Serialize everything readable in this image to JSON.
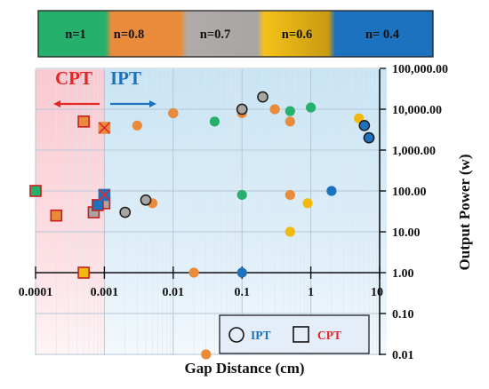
{
  "chart_data": {
    "type": "scatter",
    "title": "",
    "xlabel": "Gap Distance (cm)",
    "ylabel": "Output Power (w)",
    "x_scale": "log",
    "y_scale": "log",
    "xlim": [
      0.0001,
      10
    ],
    "ylim": [
      0.01,
      100000
    ],
    "x_ticks": [
      "0.0001",
      "0.001",
      "0.01",
      "0.1",
      "1",
      "10"
    ],
    "y_ticks": [
      "0.01",
      "0.10",
      "1.00",
      "10.00",
      "100.00",
      "1,000.00",
      "10,000.00",
      "100,000.00"
    ],
    "grid": true,
    "color_legend": [
      {
        "label": "n=1",
        "color": "#27b06c"
      },
      {
        "label": "n=0.8",
        "color": "#e98b3a"
      },
      {
        "label": "n=0.7",
        "color": "#a9a5a3"
      },
      {
        "label": "n=0.6",
        "color": "#f2b90f"
      },
      {
        "label": "n= 0.4",
        "color": "#1d72c0"
      }
    ],
    "shape_legend": [
      {
        "label": "IPT",
        "marker": "circle",
        "color": "#1d72c0"
      },
      {
        "label": "CPT",
        "marker": "square",
        "color": "#e32626"
      }
    ],
    "regions": [
      {
        "label": "CPT",
        "x_range": [
          0.0001,
          0.001
        ],
        "color": "#e32626"
      },
      {
        "label": "IPT",
        "x_range": [
          0.001,
          10
        ],
        "color": "#1d72c0"
      }
    ],
    "series": [
      {
        "name": "n=1",
        "color": "#27b06c",
        "points": [
          {
            "x": 0.01,
            "y": 8000,
            "marker": "circle"
          },
          {
            "x": 0.04,
            "y": 5000,
            "marker": "circle"
          },
          {
            "x": 0.1,
            "y": 80,
            "marker": "circle"
          },
          {
            "x": 0.5,
            "y": 9000,
            "marker": "circle"
          },
          {
            "x": 1.0,
            "y": 11000,
            "marker": "circle"
          },
          {
            "x": 0.0001,
            "y": 100,
            "marker": "square"
          }
        ]
      },
      {
        "name": "n=0.8",
        "color": "#e98b3a",
        "points": [
          {
            "x": 0.003,
            "y": 4000,
            "marker": "circle"
          },
          {
            "x": 0.005,
            "y": 50,
            "marker": "circle"
          },
          {
            "x": 0.01,
            "y": 8000,
            "marker": "circle"
          },
          {
            "x": 0.02,
            "y": 1,
            "marker": "circle"
          },
          {
            "x": 0.03,
            "y": 0.01,
            "marker": "circle"
          },
          {
            "x": 0.1,
            "y": 8000,
            "marker": "circle"
          },
          {
            "x": 0.3,
            "y": 10000,
            "marker": "circle"
          },
          {
            "x": 0.5,
            "y": 5000,
            "marker": "circle"
          },
          {
            "x": 0.5,
            "y": 80,
            "marker": "circle"
          },
          {
            "x": 0.0002,
            "y": 25,
            "marker": "square"
          },
          {
            "x": 0.0005,
            "y": 5000,
            "marker": "square"
          },
          {
            "x": 0.001,
            "y": 3500,
            "marker": "square-x"
          }
        ]
      },
      {
        "name": "n=0.7",
        "color": "#a9a5a3",
        "points": [
          {
            "x": 0.002,
            "y": 30,
            "marker": "circle"
          },
          {
            "x": 0.004,
            "y": 60,
            "marker": "circle"
          },
          {
            "x": 0.1,
            "y": 10000,
            "marker": "circle"
          },
          {
            "x": 0.2,
            "y": 20000,
            "marker": "circle"
          },
          {
            "x": 0.0007,
            "y": 30,
            "marker": "square"
          },
          {
            "x": 0.001,
            "y": 50,
            "marker": "square"
          }
        ]
      },
      {
        "name": "n=0.6",
        "color": "#f2b90f",
        "points": [
          {
            "x": 0.5,
            "y": 10,
            "marker": "circle"
          },
          {
            "x": 0.9,
            "y": 50,
            "marker": "circle"
          },
          {
            "x": 5.0,
            "y": 6000,
            "marker": "circle"
          },
          {
            "x": 0.0005,
            "y": 1,
            "marker": "square"
          }
        ]
      },
      {
        "name": "n= 0.4",
        "color": "#1d72c0",
        "points": [
          {
            "x": 0.1,
            "y": 1,
            "marker": "circle"
          },
          {
            "x": 2.0,
            "y": 100,
            "marker": "circle"
          },
          {
            "x": 6.0,
            "y": 4000,
            "marker": "circle"
          },
          {
            "x": 7.0,
            "y": 2000,
            "marker": "circle"
          },
          {
            "x": 0.0008,
            "y": 45,
            "marker": "square"
          },
          {
            "x": 0.001,
            "y": 80,
            "marker": "square-x"
          }
        ]
      }
    ]
  }
}
